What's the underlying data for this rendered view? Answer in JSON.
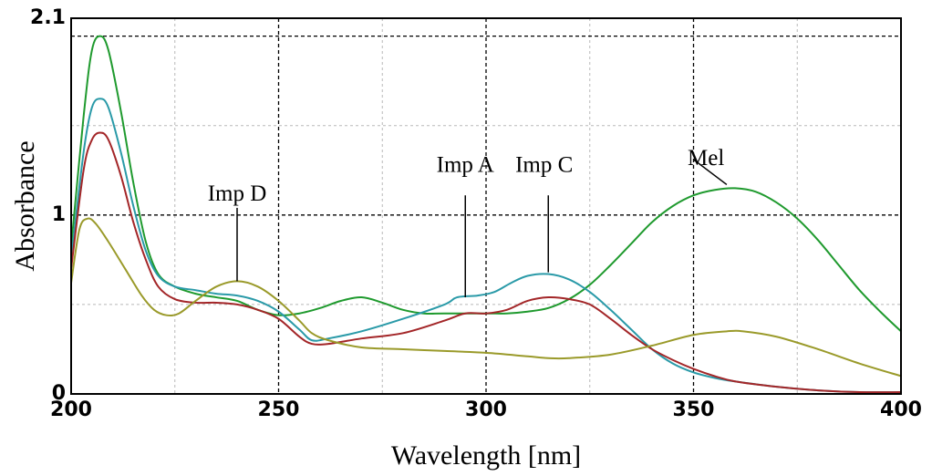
{
  "chart_data": {
    "type": "line",
    "xlabel": "Wavelength [nm]",
    "ylabel": "Absorbance",
    "xlim": [
      200,
      400
    ],
    "ylim": [
      0,
      2.1
    ],
    "x_ticks": [
      200,
      250,
      300,
      350,
      400
    ],
    "y_ticks": [
      0,
      1,
      2.1
    ],
    "grid": true,
    "series": [
      {
        "name": "Mel",
        "color": "#1f9a2e",
        "points": [
          [
            200,
            0.82
          ],
          [
            203,
            1.55
          ],
          [
            205,
            1.92
          ],
          [
            207,
            2.0
          ],
          [
            209,
            1.92
          ],
          [
            212,
            1.58
          ],
          [
            215,
            1.18
          ],
          [
            218,
            0.85
          ],
          [
            221,
            0.67
          ],
          [
            225,
            0.6
          ],
          [
            230,
            0.56
          ],
          [
            235,
            0.54
          ],
          [
            240,
            0.52
          ],
          [
            245,
            0.47
          ],
          [
            250,
            0.44
          ],
          [
            255,
            0.45
          ],
          [
            260,
            0.48
          ],
          [
            265,
            0.52
          ],
          [
            270,
            0.54
          ],
          [
            275,
            0.51
          ],
          [
            280,
            0.47
          ],
          [
            285,
            0.45
          ],
          [
            290,
            0.45
          ],
          [
            300,
            0.45
          ],
          [
            305,
            0.45
          ],
          [
            310,
            0.46
          ],
          [
            315,
            0.48
          ],
          [
            320,
            0.53
          ],
          [
            325,
            0.61
          ],
          [
            330,
            0.72
          ],
          [
            335,
            0.84
          ],
          [
            340,
            0.96
          ],
          [
            345,
            1.05
          ],
          [
            350,
            1.11
          ],
          [
            355,
            1.14
          ],
          [
            360,
            1.15
          ],
          [
            365,
            1.13
          ],
          [
            370,
            1.07
          ],
          [
            375,
            0.98
          ],
          [
            380,
            0.86
          ],
          [
            385,
            0.72
          ],
          [
            390,
            0.58
          ],
          [
            395,
            0.46
          ],
          [
            400,
            0.35
          ]
        ]
      },
      {
        "name": "Imp A",
        "color": "#2a9aa8",
        "points": [
          [
            200,
            0.75
          ],
          [
            203,
            1.35
          ],
          [
            205,
            1.6
          ],
          [
            207,
            1.65
          ],
          [
            209,
            1.6
          ],
          [
            212,
            1.35
          ],
          [
            215,
            1.05
          ],
          [
            218,
            0.8
          ],
          [
            221,
            0.66
          ],
          [
            225,
            0.6
          ],
          [
            230,
            0.58
          ],
          [
            235,
            0.56
          ],
          [
            240,
            0.55
          ],
          [
            245,
            0.52
          ],
          [
            250,
            0.46
          ],
          [
            255,
            0.36
          ],
          [
            258,
            0.3
          ],
          [
            262,
            0.31
          ],
          [
            270,
            0.35
          ],
          [
            280,
            0.42
          ],
          [
            290,
            0.5
          ],
          [
            293,
            0.54
          ],
          [
            298,
            0.55
          ],
          [
            302,
            0.57
          ],
          [
            306,
            0.62
          ],
          [
            310,
            0.66
          ],
          [
            315,
            0.67
          ],
          [
            320,
            0.64
          ],
          [
            325,
            0.57
          ],
          [
            330,
            0.47
          ],
          [
            335,
            0.36
          ],
          [
            340,
            0.25
          ],
          [
            345,
            0.17
          ],
          [
            350,
            0.12
          ],
          [
            355,
            0.09
          ],
          [
            360,
            0.07
          ],
          [
            370,
            0.04
          ],
          [
            380,
            0.02
          ],
          [
            390,
            0.01
          ],
          [
            400,
            0.01
          ]
        ]
      },
      {
        "name": "Imp C",
        "color": "#a32628",
        "points": [
          [
            200,
            0.7
          ],
          [
            203,
            1.25
          ],
          [
            205,
            1.42
          ],
          [
            207,
            1.46
          ],
          [
            209,
            1.42
          ],
          [
            212,
            1.22
          ],
          [
            215,
            0.96
          ],
          [
            218,
            0.75
          ],
          [
            221,
            0.6
          ],
          [
            225,
            0.53
          ],
          [
            230,
            0.51
          ],
          [
            235,
            0.51
          ],
          [
            240,
            0.5
          ],
          [
            245,
            0.47
          ],
          [
            250,
            0.42
          ],
          [
            255,
            0.32
          ],
          [
            258,
            0.28
          ],
          [
            262,
            0.28
          ],
          [
            270,
            0.31
          ],
          [
            280,
            0.34
          ],
          [
            290,
            0.41
          ],
          [
            295,
            0.45
          ],
          [
            300,
            0.45
          ],
          [
            305,
            0.47
          ],
          [
            310,
            0.52
          ],
          [
            315,
            0.54
          ],
          [
            320,
            0.53
          ],
          [
            325,
            0.5
          ],
          [
            330,
            0.42
          ],
          [
            335,
            0.33
          ],
          [
            340,
            0.25
          ],
          [
            345,
            0.19
          ],
          [
            350,
            0.14
          ],
          [
            355,
            0.1
          ],
          [
            360,
            0.07
          ],
          [
            370,
            0.04
          ],
          [
            380,
            0.02
          ],
          [
            390,
            0.01
          ],
          [
            400,
            0.01
          ]
        ]
      },
      {
        "name": "Imp D",
        "color": "#9a9a2a",
        "points": [
          [
            200,
            0.62
          ],
          [
            202,
            0.92
          ],
          [
            204,
            0.98
          ],
          [
            206,
            0.95
          ],
          [
            209,
            0.85
          ],
          [
            213,
            0.7
          ],
          [
            217,
            0.55
          ],
          [
            220,
            0.47
          ],
          [
            223,
            0.44
          ],
          [
            226,
            0.45
          ],
          [
            230,
            0.52
          ],
          [
            235,
            0.6
          ],
          [
            240,
            0.63
          ],
          [
            245,
            0.6
          ],
          [
            250,
            0.52
          ],
          [
            255,
            0.41
          ],
          [
            258,
            0.34
          ],
          [
            262,
            0.3
          ],
          [
            270,
            0.26
          ],
          [
            280,
            0.25
          ],
          [
            290,
            0.24
          ],
          [
            300,
            0.23
          ],
          [
            310,
            0.21
          ],
          [
            315,
            0.2
          ],
          [
            320,
            0.2
          ],
          [
            330,
            0.22
          ],
          [
            340,
            0.27
          ],
          [
            350,
            0.33
          ],
          [
            358,
            0.35
          ],
          [
            362,
            0.35
          ],
          [
            370,
            0.32
          ],
          [
            380,
            0.25
          ],
          [
            390,
            0.17
          ],
          [
            400,
            0.1
          ]
        ]
      }
    ],
    "annotations": [
      {
        "text": "Imp D",
        "label_x": 240,
        "label_y": 1.08,
        "line_from": [
          240,
          1.04
        ],
        "line_to": [
          240,
          0.63
        ]
      },
      {
        "text": "Imp A",
        "label_x": 295,
        "label_y": 1.24,
        "line_from": [
          295,
          1.11
        ],
        "line_to": [
          295,
          0.54
        ]
      },
      {
        "text": "Imp C",
        "label_x": 314,
        "label_y": 1.24,
        "line_from": [
          315,
          1.11
        ],
        "line_to": [
          315,
          0.68
        ]
      },
      {
        "text": "Mel",
        "label_x": 353,
        "label_y": 1.28,
        "line_from": [
          350,
          1.31
        ],
        "line_to": [
          358,
          1.17
        ]
      }
    ]
  }
}
